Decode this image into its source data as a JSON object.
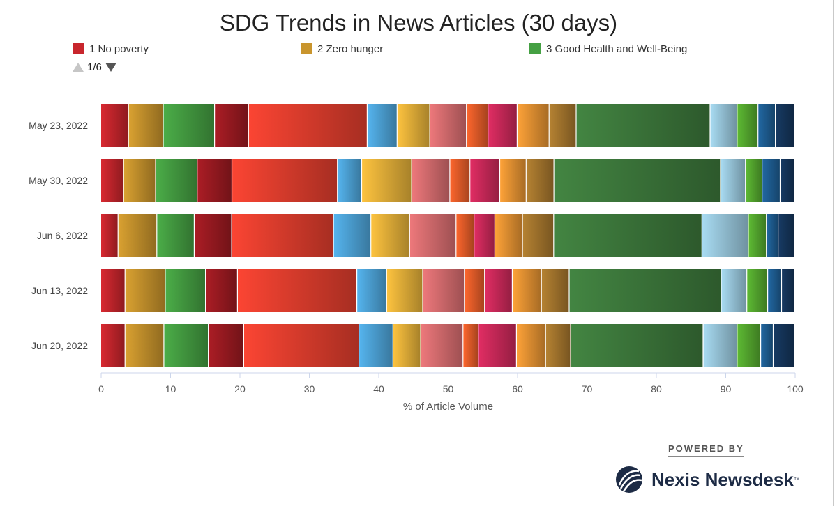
{
  "title": "SDG Trends in News Articles (30 days)",
  "legend": [
    {
      "label": "1 No poverty",
      "color": "#c8262d"
    },
    {
      "label": "2 Zero hunger",
      "color": "#c9952d"
    },
    {
      "label": "3 Good Health and Well-Being",
      "color": "#45a043"
    }
  ],
  "pager": {
    "text": "1/6"
  },
  "powered_by": "POWERED BY",
  "brand": "Nexis Newsdesk",
  "brand_mark": "™",
  "chart_data": {
    "type": "bar",
    "orientation": "horizontal",
    "stacked": true,
    "xlabel": "% of Article Volume",
    "ylabel": "",
    "xlim": [
      0,
      100
    ],
    "xticks": [
      0,
      10,
      20,
      30,
      40,
      50,
      60,
      70,
      80,
      90,
      100
    ],
    "categories": [
      "May 23, 2022",
      "May 30, 2022",
      "Jun 6, 2022",
      "Jun 13, 2022",
      "Jun 20, 2022"
    ],
    "series": [
      {
        "name": "1 No poverty",
        "color": "#c8262d",
        "values": [
          4.0,
          3.3,
          2.5,
          3.5,
          3.5
        ]
      },
      {
        "name": "2 Zero hunger",
        "color": "#c9952d",
        "values": [
          5.0,
          4.6,
          5.6,
          5.8,
          5.6
        ]
      },
      {
        "name": "3 Good Health and Well-Being",
        "color": "#45a043",
        "values": [
          7.4,
          6.0,
          5.4,
          5.8,
          6.4
        ]
      },
      {
        "color": "#9e1b22",
        "values": [
          4.9,
          5.0,
          5.4,
          4.6,
          5.1
        ]
      },
      {
        "color": "#e8402f",
        "values": [
          17.1,
          15.2,
          14.7,
          17.2,
          16.6
        ]
      },
      {
        "color": "#4fa7dc",
        "values": [
          4.3,
          3.5,
          5.4,
          4.3,
          4.9
        ]
      },
      {
        "color": "#eab53a",
        "values": [
          4.7,
          7.2,
          5.6,
          5.2,
          4.0
        ]
      },
      {
        "color": "#db6f72",
        "values": [
          5.3,
          5.5,
          6.7,
          6.0,
          6.1
        ]
      },
      {
        "color": "#e95e2a",
        "values": [
          3.1,
          2.9,
          2.6,
          2.9,
          2.2
        ]
      },
      {
        "color": "#cf2a5c",
        "values": [
          4.2,
          4.3,
          3.0,
          4.0,
          5.5
        ]
      },
      {
        "color": "#ea9634",
        "values": [
          4.6,
          3.8,
          4.0,
          4.2,
          4.2
        ]
      },
      {
        "color": "#a8782e",
        "values": [
          3.9,
          4.0,
          4.5,
          4.0,
          3.6
        ]
      },
      {
        "color": "#3e7b3d",
        "values": [
          19.3,
          24.0,
          21.4,
          21.9,
          19.1
        ]
      },
      {
        "color": "#9ccbe0",
        "values": [
          3.9,
          3.6,
          6.7,
          3.7,
          4.9
        ]
      },
      {
        "color": "#56ab2f",
        "values": [
          3.0,
          2.4,
          2.6,
          3.0,
          3.4
        ]
      },
      {
        "color": "#1f5f95",
        "values": [
          2.5,
          2.6,
          1.7,
          2.0,
          1.8
        ]
      },
      {
        "color": "#15365c",
        "values": [
          2.8,
          2.1,
          2.4,
          1.9,
          3.1
        ]
      }
    ]
  }
}
